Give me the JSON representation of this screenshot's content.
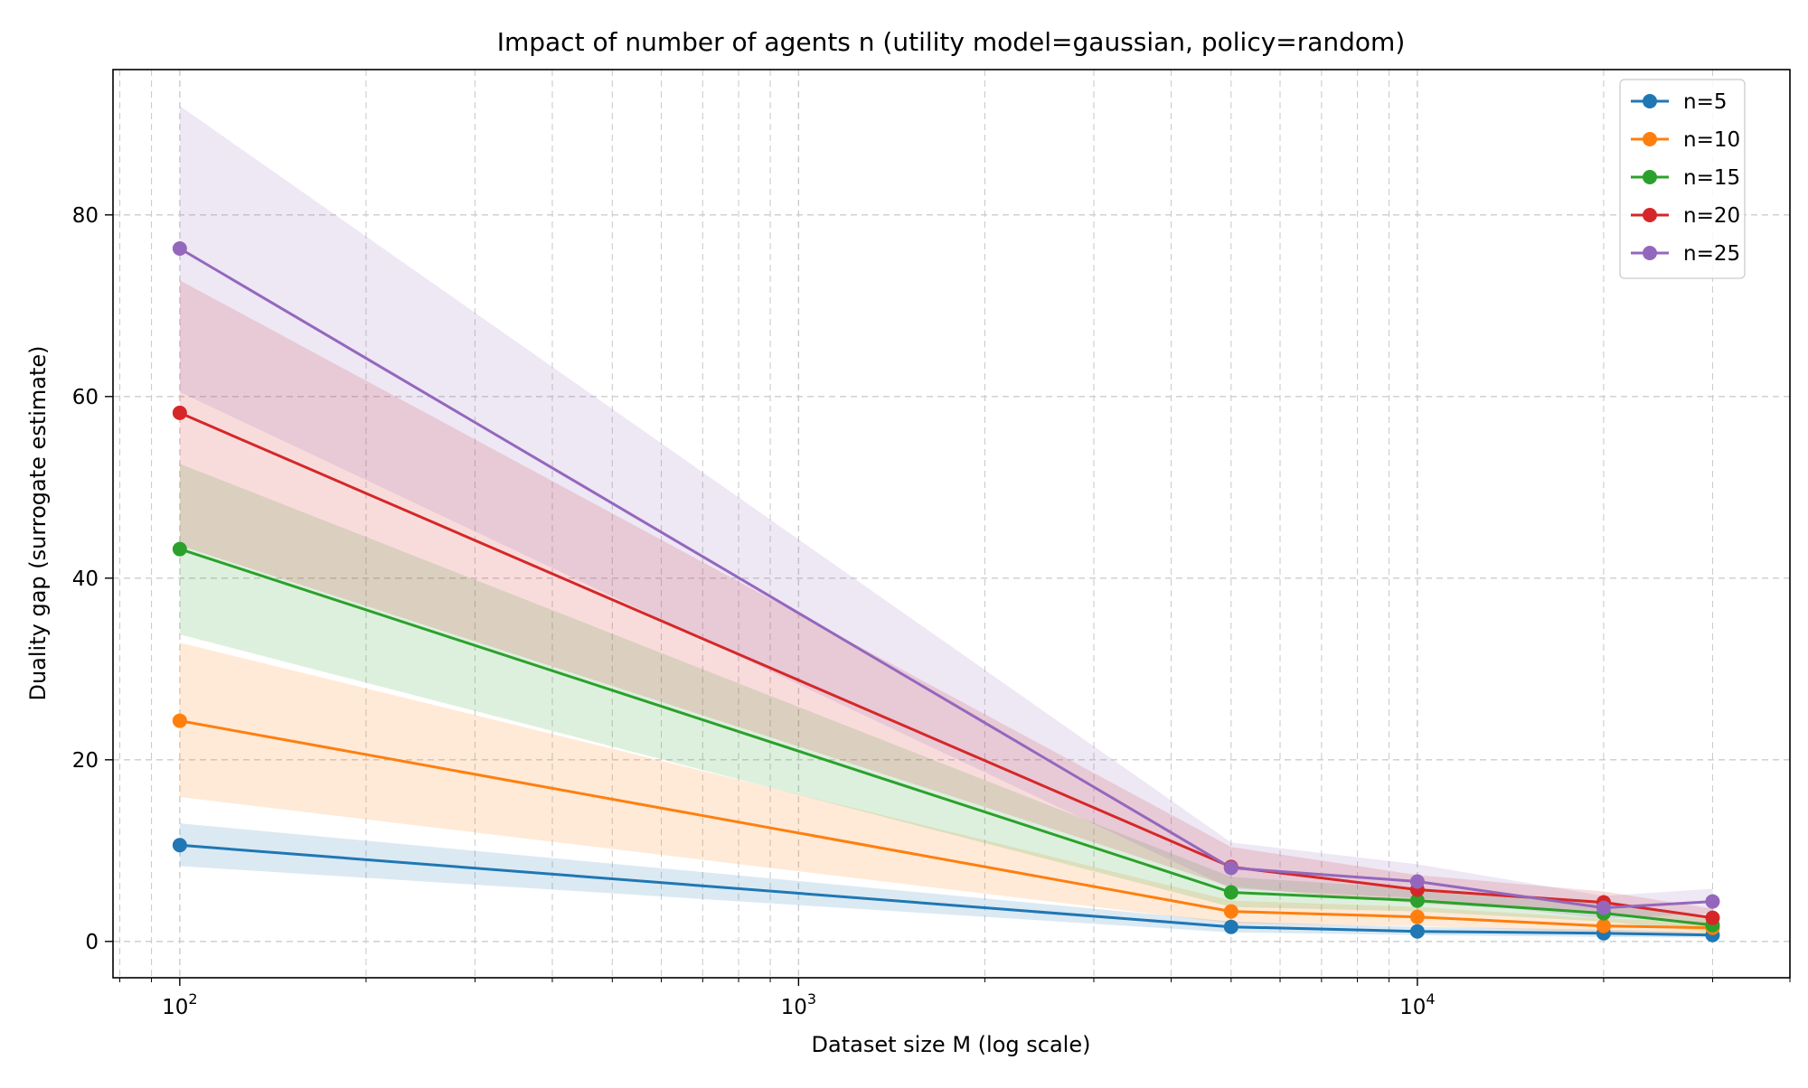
{
  "chart_data": {
    "type": "line",
    "title": "Impact of number of agents n (utility model=gaussian, policy=random)",
    "xlabel": "Dataset size M (log scale)",
    "ylabel": "Duality gap (surrogate estimate)",
    "xscale": "log",
    "xlim": [
      78,
      40000
    ],
    "ylim": [
      -4,
      96
    ],
    "x": [
      100,
      5000,
      10000,
      20000,
      30000
    ],
    "x_ticks": [
      {
        "value": 100,
        "base": "10",
        "exp": "2"
      },
      {
        "value": 1000,
        "base": "10",
        "exp": "3"
      },
      {
        "value": 10000,
        "base": "10",
        "exp": "4"
      }
    ],
    "y_ticks": [
      {
        "value": 0,
        "label": "0"
      },
      {
        "value": 20,
        "label": "20"
      },
      {
        "value": 40,
        "label": "40"
      },
      {
        "value": 60,
        "label": "60"
      },
      {
        "value": 80,
        "label": "80"
      }
    ],
    "grid": true,
    "legend_position": "top-right",
    "series": [
      {
        "name": "n=5",
        "color": "#1f77b4",
        "values": [
          10.6,
          1.6,
          1.1,
          0.9,
          0.7
        ],
        "lower": [
          8.3,
          1.0,
          0.7,
          0.5,
          0.4
        ],
        "upper": [
          13.0,
          2.2,
          1.6,
          1.3,
          1.0
        ]
      },
      {
        "name": "n=10",
        "color": "#ff7f0e",
        "values": [
          24.3,
          3.3,
          2.7,
          1.7,
          1.5
        ],
        "lower": [
          15.9,
          2.0,
          1.7,
          1.0,
          0.8
        ],
        "upper": [
          32.9,
          4.5,
          3.8,
          2.5,
          2.2
        ]
      },
      {
        "name": "n=15",
        "color": "#2ca02c",
        "values": [
          43.2,
          5.4,
          4.5,
          3.1,
          1.8
        ],
        "lower": [
          33.8,
          3.8,
          3.3,
          2.2,
          1.0
        ],
        "upper": [
          52.6,
          7.1,
          5.8,
          4.2,
          2.7
        ]
      },
      {
        "name": "n=20",
        "color": "#d62728",
        "values": [
          58.2,
          8.2,
          5.7,
          4.3,
          2.6
        ],
        "lower": [
          43.6,
          6.0,
          4.2,
          3.1,
          1.6
        ],
        "upper": [
          72.8,
          10.4,
          7.3,
          5.5,
          3.6
        ]
      },
      {
        "name": "n=25",
        "color": "#9467bd",
        "values": [
          76.3,
          8.1,
          6.6,
          3.7,
          4.4
        ],
        "lower": [
          60.5,
          5.8,
          4.8,
          2.5,
          3.1
        ],
        "upper": [
          92.0,
          10.9,
          8.5,
          5.0,
          5.8
        ]
      }
    ]
  }
}
